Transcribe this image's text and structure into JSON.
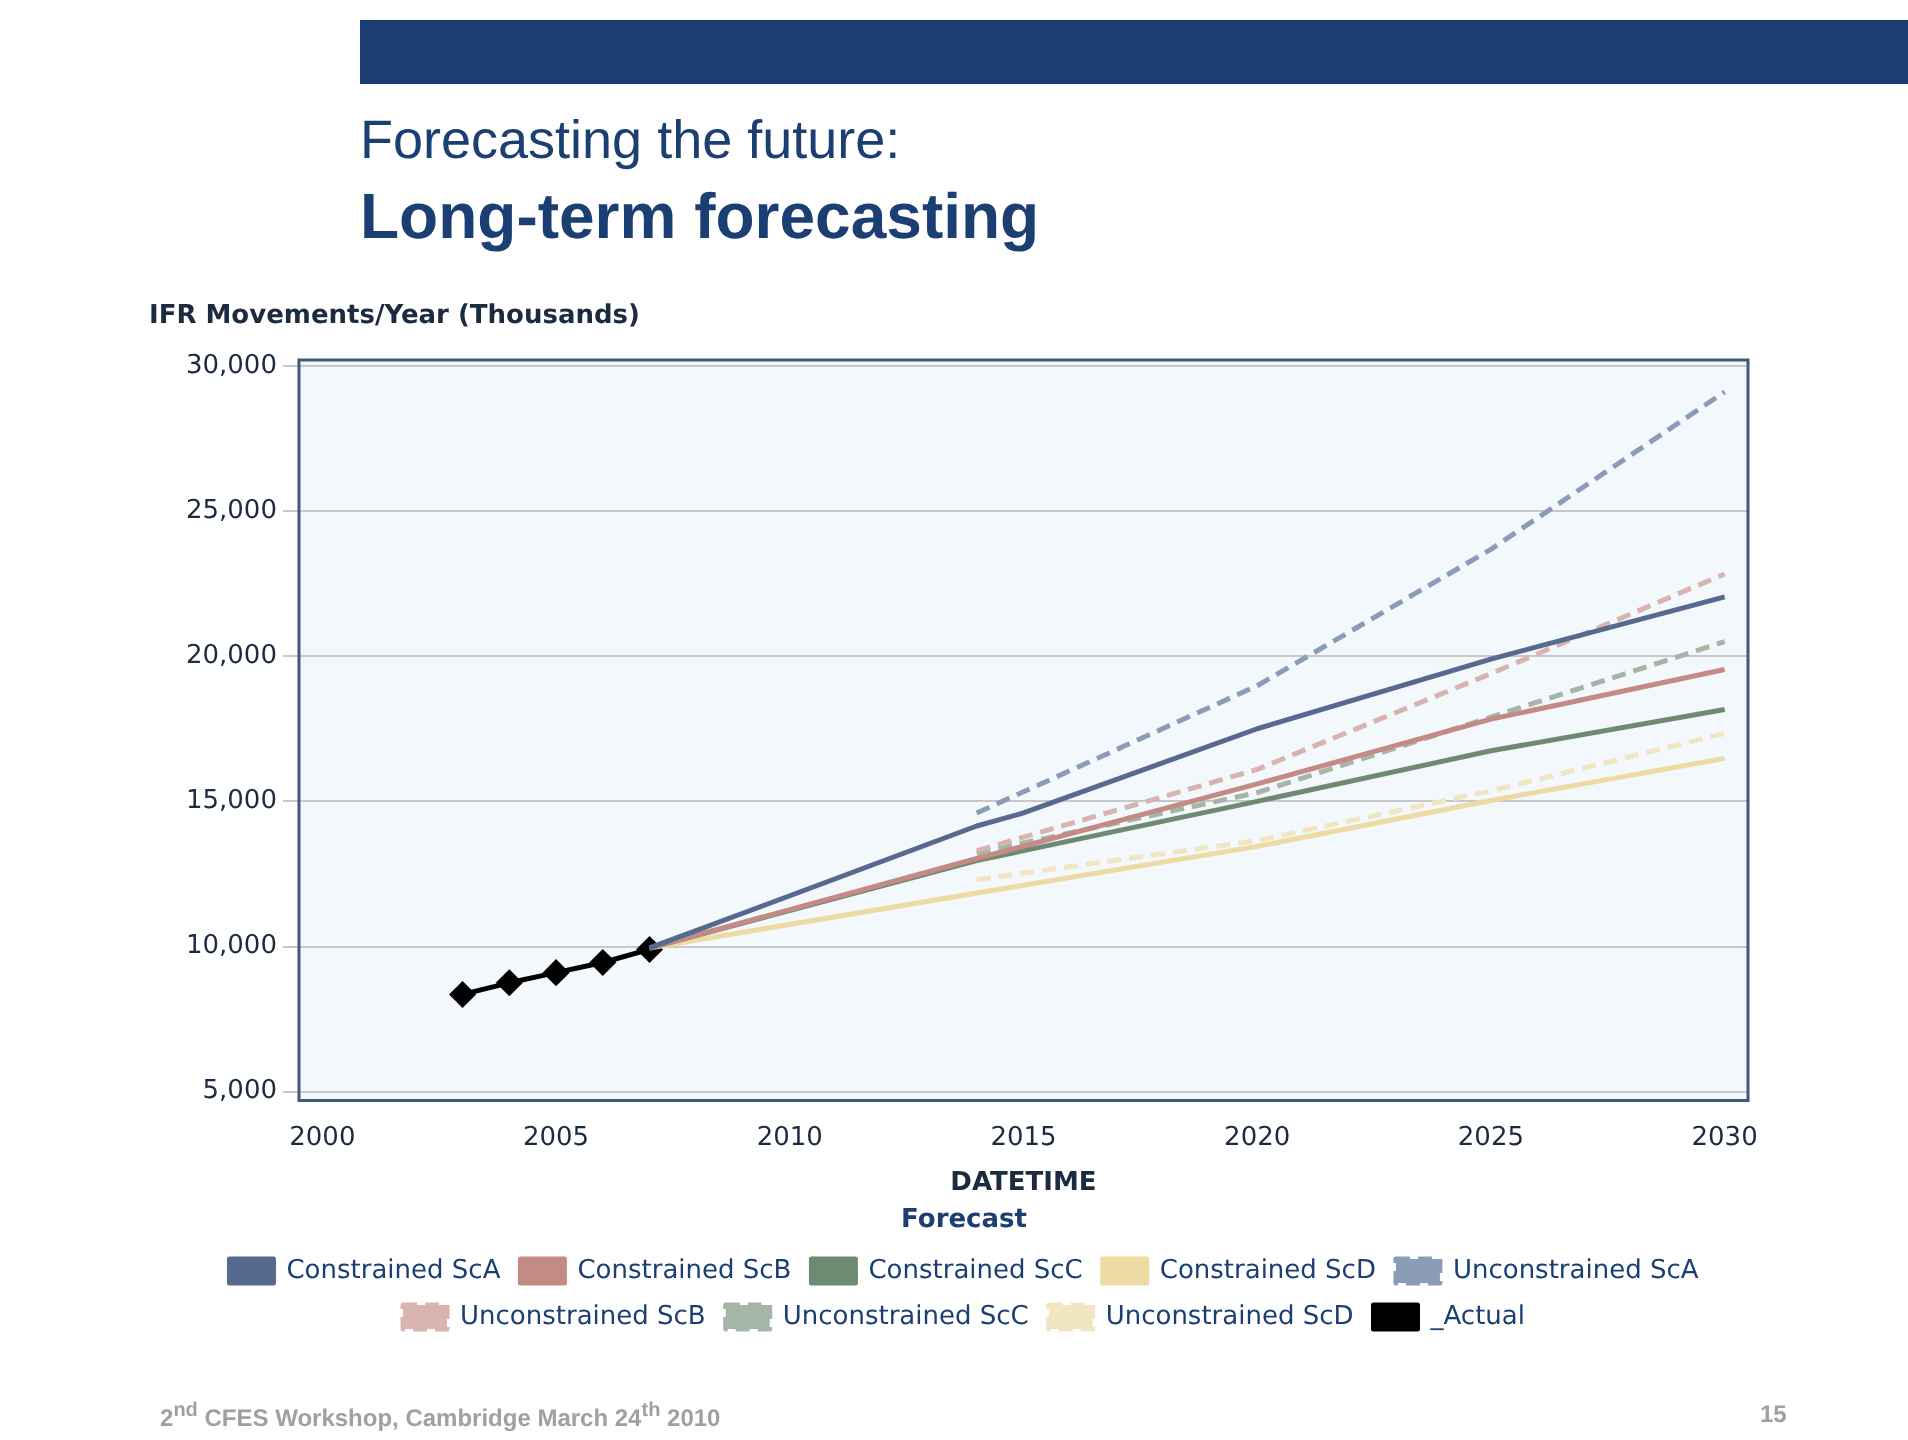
{
  "chart_data": {
    "type": "line",
    "title": "Forecasting the future:",
    "subtitle": "Long-term forecasting",
    "xlabel": "DATETIME",
    "ylabel": "IFR Movements/Year (Thousands)",
    "legend_title": "Forecast",
    "legend": "bottom",
    "grid": "y",
    "marker": "none",
    "line_style": "solid",
    "xlim": [
      1999.5,
      2030.5
    ],
    "xticks": [
      2000,
      2005,
      2010,
      2015,
      2020,
      2025,
      2030
    ],
    "ylim": [
      4700,
      30200
    ],
    "yticks": [
      {
        "value": 5000,
        "label": "5,000"
      },
      {
        "value": 10000,
        "label": "10,000"
      },
      {
        "value": 15000,
        "label": "15,000"
      },
      {
        "value": 20000,
        "label": "20,000"
      },
      {
        "value": 25000,
        "label": "25,000"
      },
      {
        "value": 30000,
        "label": "30,000"
      }
    ],
    "series": [
      {
        "name": "Constrained ScA",
        "color": "#56698f",
        "x": [
          2007,
          2014,
          2015,
          2020,
          2025,
          2030
        ],
        "values": [
          9950,
          14150,
          14600,
          17500,
          19900,
          22040
        ]
      },
      {
        "name": "Constrained ScB",
        "color": "#c48a85",
        "x": [
          2007,
          2014,
          2020,
          2025,
          2030
        ],
        "values": [
          9950,
          13030,
          15600,
          17830,
          19540
        ]
      },
      {
        "name": "Constrained ScC",
        "color": "#6f8a72",
        "x": [
          2007,
          2014,
          2020,
          2025,
          2030
        ],
        "values": [
          9950,
          12960,
          15000,
          16740,
          18160
        ]
      },
      {
        "name": "Constrained ScD",
        "color": "#eddba3",
        "x": [
          2007,
          2014,
          2020,
          2025,
          2030
        ],
        "values": [
          9950,
          11840,
          13450,
          15030,
          16480
        ]
      },
      {
        "name": "Unconstrained ScA",
        "color": "#8a9cb8",
        "line_style": "dashed",
        "x": [
          2014,
          2020,
          2025,
          2030
        ],
        "values": [
          14600,
          18980,
          23680,
          29100
        ]
      },
      {
        "name": "Unconstrained ScB",
        "color": "#d9b3b0",
        "line_style": "dashed",
        "x": [
          2014,
          2020,
          2025,
          2030
        ],
        "values": [
          13300,
          16100,
          19400,
          22830
        ]
      },
      {
        "name": "Unconstrained ScC",
        "color": "#a5b6a6",
        "line_style": "dashed",
        "x": [
          2014,
          2020,
          2025,
          2030
        ],
        "values": [
          13220,
          15300,
          17900,
          20500
        ]
      },
      {
        "name": "Unconstrained ScD",
        "color": "#f2e6c2",
        "line_style": "dashed",
        "x": [
          2014,
          2020,
          2025,
          2030
        ],
        "values": [
          12300,
          13650,
          15360,
          17340
        ]
      },
      {
        "name": "_Actual",
        "color": "#000000",
        "marker": "diamond",
        "x": [
          2003,
          2004,
          2005,
          2006,
          2007
        ],
        "values": [
          8350,
          8750,
          9100,
          9450,
          9900
        ]
      }
    ],
    "annotations": [
      "2$^{nd}$ CFES Workshop,  Cambridge March 24$^{th}$ 2010",
      "15"
    ]
  }
}
